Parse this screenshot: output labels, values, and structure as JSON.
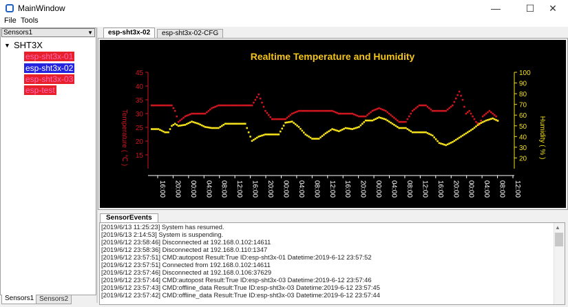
{
  "window": {
    "title": "MainWindow",
    "minimize": "—",
    "maximize": "☐",
    "close": "✕"
  },
  "menu": [
    "File",
    "Tools"
  ],
  "sidebar": {
    "combo_value": "Sensors1",
    "tree_root": "SHT3X",
    "items": [
      "esp-sht3x-01",
      "esp-sht3x-02",
      "esp-sht3x-03",
      "esp-test"
    ],
    "selected": "esp-sht3x-02",
    "bottom_tabs": [
      "Sensors1",
      "Sensors2"
    ]
  },
  "main_tabs": [
    "esp-sht3x-02",
    "esp-sht3x-02-CFG"
  ],
  "events_tab": "SensorEvents",
  "colors": {
    "temperature": "#d0161f",
    "humidity": "#f5e11a",
    "title": "#f5c518"
  },
  "chart_data": {
    "type": "scatter",
    "title": "Realtime Temperature and Humidity",
    "ylabel_left": "Temperature ( ℃ )",
    "ylabel_right": "Humidity ( % )",
    "ylim_left": [
      10,
      45
    ],
    "ylim_right": [
      10,
      100
    ],
    "yticks_left": [
      15,
      20,
      25,
      30,
      35,
      40,
      45
    ],
    "yticks_right": [
      20,
      30,
      40,
      50,
      60,
      70,
      80,
      90,
      100
    ],
    "xticks": [
      "16:00",
      "20:00",
      "00:00",
      "04:00",
      "08:00",
      "12:00",
      "16:00",
      "20:00",
      "00:00",
      "04:00",
      "08:00",
      "12:00",
      "16:00",
      "20:00",
      "00:00",
      "04:00",
      "08:00",
      "12:00",
      "16:00",
      "20:00",
      "00:00",
      "04:00",
      "08:00",
      "12:00"
    ],
    "series": [
      {
        "name": "Temperature",
        "axis": "left",
        "x": [
          0,
          4,
          8,
          12,
          14,
          16,
          20,
          24,
          28,
          32,
          36,
          40,
          44,
          48,
          52,
          56,
          60,
          64,
          66,
          68,
          72,
          76,
          80,
          84,
          88,
          92,
          96,
          100,
          104,
          108,
          112,
          116,
          120,
          124,
          128,
          132,
          136,
          140,
          144,
          148,
          152,
          156,
          160,
          164,
          168,
          172,
          176,
          180,
          184,
          186,
          188,
          190,
          192,
          194,
          196,
          198,
          200,
          202,
          204,
          206,
          208
        ],
        "y": [
          33,
          33,
          33,
          33,
          31,
          27,
          29,
          30,
          30,
          30,
          32,
          33,
          33,
          33,
          33,
          33,
          33,
          37,
          34,
          31,
          28,
          28,
          28,
          30,
          31,
          31,
          31,
          31,
          31,
          31,
          30,
          30,
          30,
          29,
          29,
          31,
          32,
          31,
          29,
          27,
          27,
          31,
          33,
          33,
          31,
          31,
          31,
          33,
          38,
          35,
          30,
          31,
          29,
          27,
          26,
          29,
          30,
          31,
          30,
          29,
          26
        ]
      },
      {
        "name": "Humidity",
        "axis": "right",
        "x": [
          0,
          4,
          8,
          10,
          12,
          14,
          16,
          20,
          24,
          28,
          32,
          36,
          40,
          44,
          48,
          52,
          56,
          60,
          64,
          68,
          72,
          76,
          80,
          84,
          88,
          92,
          96,
          100,
          104,
          108,
          112,
          116,
          120,
          124,
          128,
          132,
          136,
          140,
          144,
          148,
          152,
          156,
          160,
          164,
          168,
          172,
          176,
          180,
          184,
          188,
          192,
          196,
          200,
          204,
          208
        ],
        "y": [
          47,
          47,
          44,
          44,
          50,
          52,
          50,
          51,
          54,
          52,
          49,
          48,
          48,
          52,
          52,
          52,
          52,
          36,
          40,
          42,
          42,
          42,
          53,
          54,
          49,
          42,
          38,
          38,
          43,
          47,
          45,
          48,
          47,
          49,
          55,
          55,
          58,
          56,
          52,
          48,
          48,
          44,
          44,
          44,
          41,
          34,
          32,
          35,
          39,
          43,
          47,
          52,
          55,
          57,
          54
        ]
      }
    ]
  },
  "log_lines": [
    "[2019/6/13 11:25:23] System has resumed.",
    "[2019/6/13 2:14:53] System is suspending.",
    "[2019/6/12 23:58:46] Disconnected at 192.168.0.102:14611",
    "[2019/6/12 23:58:36] Disconnected at 192.168.0.110:1347",
    "[2019/6/12 23:57:51] CMD:autopost Result:True ID:esp-sht3x-01 Datetime:2019-6-12 23:57:52",
    "[2019/6/12 23:57:51] Connected from 192.168.0.102:14611",
    "[2019/6/12 23:57:46] Disconnected at 192.168.0.106:37629",
    "[2019/6/12 23:57:44] CMD:autopost Result:True ID:esp-sht3x-03 Datetime:2019-6-12 23:57:46",
    "[2019/6/12 23:57:43] CMD:offline_data Result:True ID:esp-sht3x-03 Datetime:2019-6-12 23:57:45",
    "[2019/6/12 23:57:42] CMD:offline_data Result:True ID:esp-sht3x-03 Datetime:2019-6-12 23:57:44"
  ]
}
